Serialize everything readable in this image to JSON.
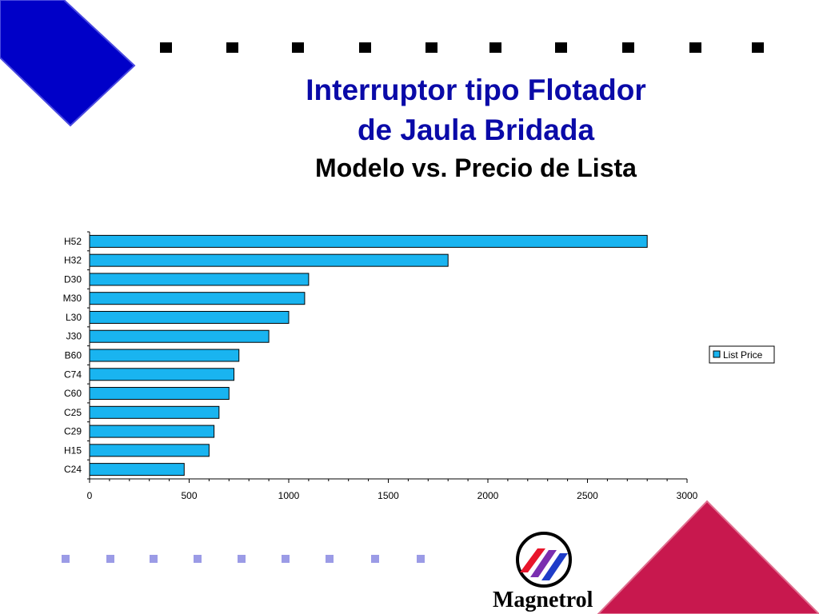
{
  "slide": {
    "title_line1": "Interruptor tipo Flotador",
    "title_line2": "de Jaula Bridada",
    "subtitle": "Modelo vs. Precio de Lista",
    "logo_name": "Magnetrol"
  },
  "colors": {
    "title": "#0a0aa8",
    "bar_fill": "#19b4f0",
    "bar_stroke": "#000000",
    "corner_blue": "#0000c8",
    "corner_red": "#c8184e",
    "square_dark": "#000000",
    "square_light": "#9b9be6"
  },
  "chart_data": {
    "type": "bar",
    "orientation": "horizontal",
    "categories": [
      "C24",
      "H15",
      "C29",
      "C25",
      "C60",
      "C74",
      "B60",
      "J30",
      "L30",
      "M30",
      "D30",
      "H32",
      "H52"
    ],
    "series": [
      {
        "name": "List Price",
        "values": [
          475,
          600,
          625,
          650,
          700,
          725,
          750,
          900,
          1000,
          1080,
          1100,
          1800,
          2800
        ]
      }
    ],
    "xlim": [
      0,
      3000
    ],
    "xticks": [
      0,
      500,
      1000,
      1500,
      2000,
      2500,
      3000
    ],
    "title": "",
    "xlabel": "",
    "ylabel": "",
    "legend": "right"
  }
}
